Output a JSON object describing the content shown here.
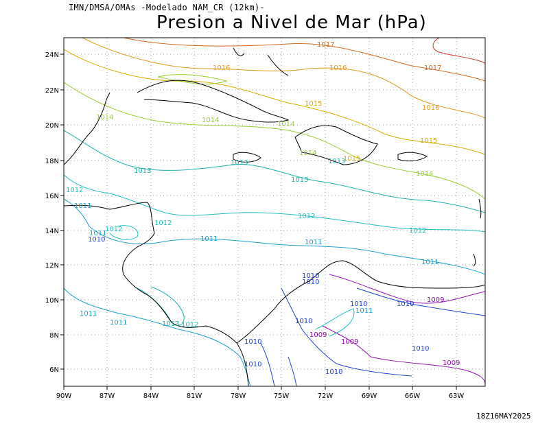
{
  "header": {
    "source": "IMN/DMSA/OMAs -Modelado NAM_CR (12km)-",
    "title": "Presion a Nivel de Mar (hPa)",
    "timestamp": "18Z16MAY2025"
  },
  "map": {
    "lat_labels": [
      "24N",
      "22N",
      "20N",
      "18N",
      "16N",
      "14N",
      "12N",
      "10N",
      "8N",
      "6N"
    ],
    "lon_labels": [
      "90W",
      "87W",
      "84W",
      "81W",
      "78W",
      "75W",
      "72W",
      "69W",
      "66W",
      "63W"
    ],
    "colors": {
      "1017": "#d2691e",
      "1016": "#e09a20",
      "1015": "#d4b000",
      "1014": "#9acd32",
      "1013": "#20b2aa",
      "1012": "#20c0c0",
      "1011": "#1ea0c8",
      "1010": "#2040d0",
      "1009": "#9010b0",
      "1018": "#d03030",
      "coast": "#000000",
      "grid": "#999999"
    },
    "contour_labels": [
      {
        "text": "1017",
        "level": "1017"
      },
      {
        "text": "1017",
        "level": "1017"
      },
      {
        "text": "1016",
        "level": "1016"
      },
      {
        "text": "1016",
        "level": "1016"
      },
      {
        "text": "1016",
        "level": "1016"
      },
      {
        "text": "1015",
        "level": "1015"
      },
      {
        "text": "1015",
        "level": "1015"
      },
      {
        "text": "1015",
        "level": "1015"
      },
      {
        "text": "1014",
        "level": "1014"
      },
      {
        "text": "1014",
        "level": "1014"
      },
      {
        "text": "1014",
        "level": "1014"
      },
      {
        "text": "1014",
        "level": "1014"
      },
      {
        "text": "1014",
        "level": "1014"
      },
      {
        "text": "1013",
        "level": "1013"
      },
      {
        "text": "1013",
        "level": "1013"
      },
      {
        "text": "1013",
        "level": "1013"
      },
      {
        "text": "1013",
        "level": "1013"
      },
      {
        "text": "1013",
        "level": "1013"
      },
      {
        "text": "1012",
        "level": "1012"
      },
      {
        "text": "1012",
        "level": "1012"
      },
      {
        "text": "1012",
        "level": "1012"
      },
      {
        "text": "1012",
        "level": "1012"
      },
      {
        "text": "1012",
        "level": "1012"
      },
      {
        "text": "1012",
        "level": "1012"
      },
      {
        "text": "1011",
        "level": "1011"
      },
      {
        "text": "1011",
        "level": "1011"
      },
      {
        "text": "1011",
        "level": "1011"
      },
      {
        "text": "1011",
        "level": "1011"
      },
      {
        "text": "1011",
        "level": "1011"
      },
      {
        "text": "1011",
        "level": "1011"
      },
      {
        "text": "1011",
        "level": "1011"
      },
      {
        "text": "1011",
        "level": "1011"
      },
      {
        "text": "1010",
        "level": "1010"
      },
      {
        "text": "1010",
        "level": "1010"
      },
      {
        "text": "1010",
        "level": "1010"
      },
      {
        "text": "1010",
        "level": "1010"
      },
      {
        "text": "1010",
        "level": "1010"
      },
      {
        "text": "1010",
        "level": "1010"
      },
      {
        "text": "1010",
        "level": "1010"
      },
      {
        "text": "1010",
        "level": "1010"
      },
      {
        "text": "1010",
        "level": "1010"
      },
      {
        "text": "1010",
        "level": "1010"
      },
      {
        "text": "1009",
        "level": "1009"
      },
      {
        "text": "1009",
        "level": "1009"
      },
      {
        "text": "1009",
        "level": "1009"
      },
      {
        "text": "1009",
        "level": "1009"
      }
    ]
  }
}
